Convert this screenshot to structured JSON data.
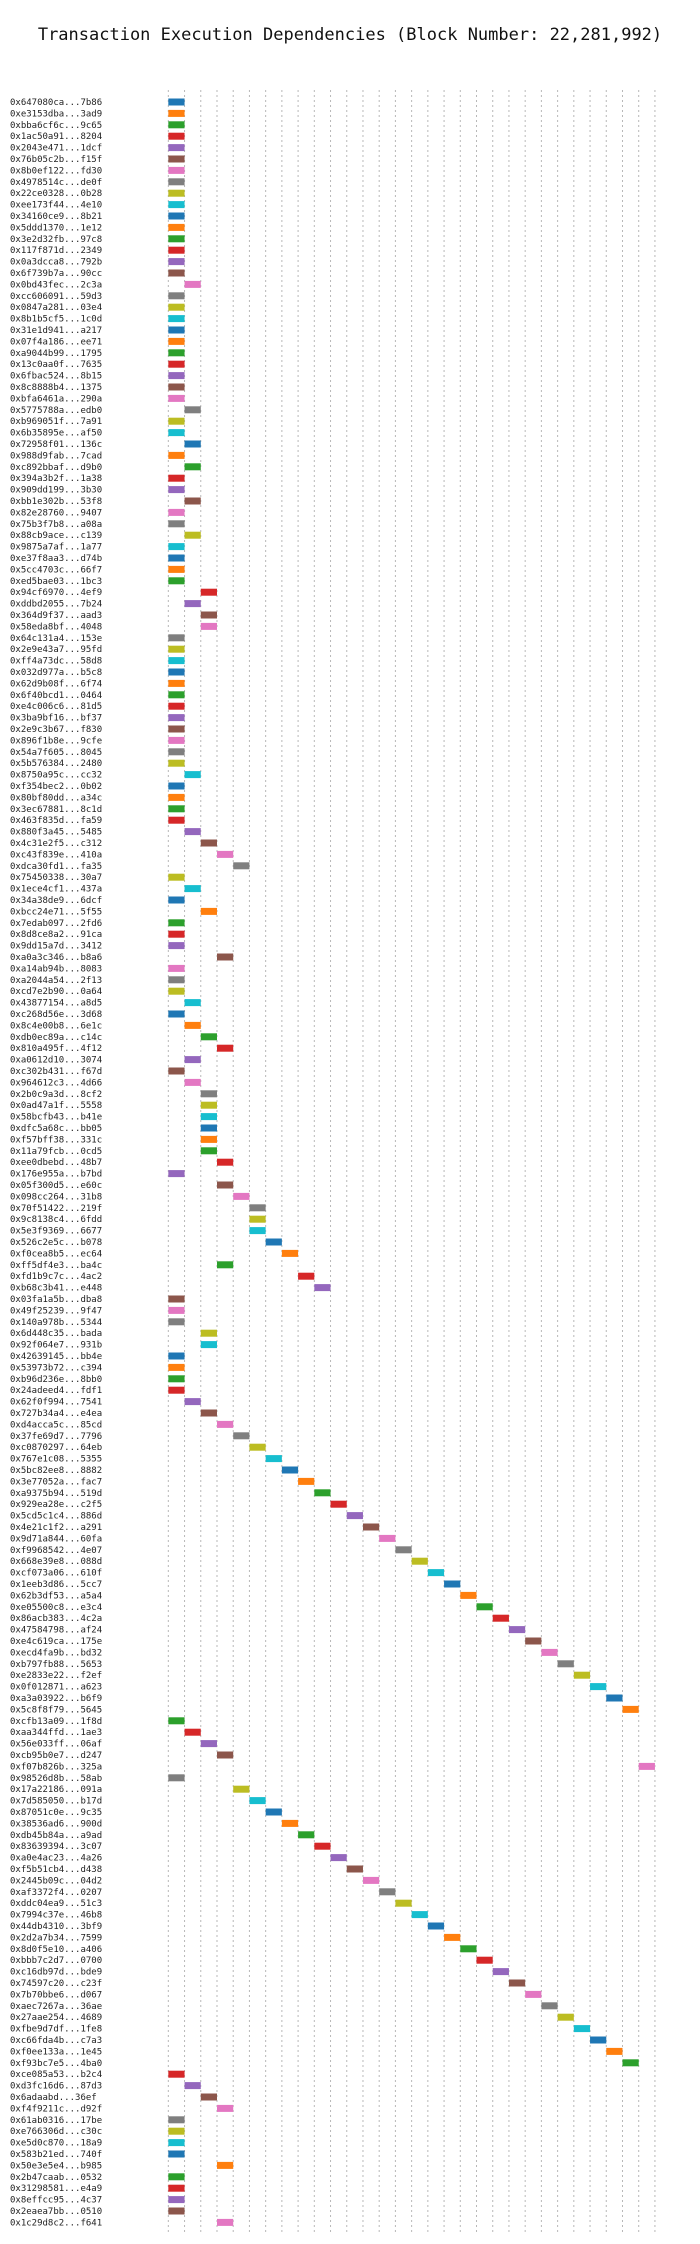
{
  "chart_data": {
    "type": "gantt",
    "title": "Transaction Execution Dependencies (Block Number: 22,281,992)",
    "xlabel": "",
    "ylabel": "",
    "xlim": [
      -1.5,
      31
    ],
    "x_ticks": [
      0,
      5,
      10,
      15,
      20,
      25,
      30
    ],
    "grid": "dotted vertical lines at every integer step",
    "bar_duration": 1,
    "palette": [
      "#1f77b4",
      "#ff7f0e",
      "#2ca02c",
      "#d62728",
      "#9467bd",
      "#8c564b",
      "#e377c2",
      "#7f7f7f",
      "#bcbd22",
      "#17becf"
    ],
    "transactions": [
      {
        "label": "0x647080ca...7b86",
        "start": 0
      },
      {
        "label": "0xe3153dba...3ad9",
        "start": 0
      },
      {
        "label": "0xbba6cf6c...9c65",
        "start": 0
      },
      {
        "label": "0x1ac50a91...8204",
        "start": 0
      },
      {
        "label": "0x2043e471...1dcf",
        "start": 0
      },
      {
        "label": "0x76b05c2b...f15f",
        "start": 0
      },
      {
        "label": "0x8b0ef122...fd30",
        "start": 0
      },
      {
        "label": "0x4978514c...de0f",
        "start": 0
      },
      {
        "label": "0x22ce0328...0b28",
        "start": 0
      },
      {
        "label": "0xee173f44...4e10",
        "start": 0
      },
      {
        "label": "0x34160ce9...8b21",
        "start": 0
      },
      {
        "label": "0x5ddd1370...1e12",
        "start": 0
      },
      {
        "label": "0x3e2d32fb...97c8",
        "start": 0
      },
      {
        "label": "0x117f871d...2349",
        "start": 0
      },
      {
        "label": "0x0a3dcca8...792b",
        "start": 0
      },
      {
        "label": "0x6f739b7a...90cc",
        "start": 0
      },
      {
        "label": "0x0bd43fec...2c3a",
        "start": 1
      },
      {
        "label": "0xcc606091...59d3",
        "start": 0
      },
      {
        "label": "0x0847a281...03e4",
        "start": 0
      },
      {
        "label": "0x8b1b5cf5...1c0d",
        "start": 0
      },
      {
        "label": "0x31e1d941...a217",
        "start": 0
      },
      {
        "label": "0x07f4a186...ee71",
        "start": 0
      },
      {
        "label": "0xa9044b99...1795",
        "start": 0
      },
      {
        "label": "0x13c0aa0f...7635",
        "start": 0
      },
      {
        "label": "0x6fbac524...8b15",
        "start": 0
      },
      {
        "label": "0x8c8888b4...1375",
        "start": 0
      },
      {
        "label": "0xbfa6461a...290a",
        "start": 0
      },
      {
        "label": "0x5775788a...edb0",
        "start": 1
      },
      {
        "label": "0xb969051f...7a91",
        "start": 0
      },
      {
        "label": "0x6b35895e...af50",
        "start": 0
      },
      {
        "label": "0x72958f01...136c",
        "start": 1
      },
      {
        "label": "0x988d9fab...7cad",
        "start": 0
      },
      {
        "label": "0xc892bbaf...d9b0",
        "start": 1
      },
      {
        "label": "0x394a3b2f...1a38",
        "start": 0
      },
      {
        "label": "0x909dd199...3b30",
        "start": 0
      },
      {
        "label": "0xbb1e302b...53f8",
        "start": 1
      },
      {
        "label": "0x82e28760...9407",
        "start": 0
      },
      {
        "label": "0x75b3f7b8...a08a",
        "start": 0
      },
      {
        "label": "0x88cb9ace...c139",
        "start": 1
      },
      {
        "label": "0x9875a7af...1a77",
        "start": 0
      },
      {
        "label": "0xe37f8aa3...d74b",
        "start": 0
      },
      {
        "label": "0x5cc4703c...66f7",
        "start": 0
      },
      {
        "label": "0xed5bae03...1bc3",
        "start": 0
      },
      {
        "label": "0x94cf6970...4ef9",
        "start": 2
      },
      {
        "label": "0xddbd2055...7b24",
        "start": 1
      },
      {
        "label": "0x364d9f37...aad3",
        "start": 2
      },
      {
        "label": "0x58eda8bf...4048",
        "start": 2
      },
      {
        "label": "0x64c131a4...153e",
        "start": 0
      },
      {
        "label": "0x2e9e43a7...95fd",
        "start": 0
      },
      {
        "label": "0xff4a73dc...58d8",
        "start": 0
      },
      {
        "label": "0x032d977a...b5c8",
        "start": 0
      },
      {
        "label": "0x62d9b08f...6f74",
        "start": 0
      },
      {
        "label": "0x6f40bcd1...0464",
        "start": 0
      },
      {
        "label": "0xe4c006c6...81d5",
        "start": 0
      },
      {
        "label": "0x3ba9bf16...bf37",
        "start": 0
      },
      {
        "label": "0x2e9c3b67...f830",
        "start": 0
      },
      {
        "label": "0x896f1b8e...9cfe",
        "start": 0
      },
      {
        "label": "0x54a7f605...8045",
        "start": 0
      },
      {
        "label": "0x5b576384...2480",
        "start": 0
      },
      {
        "label": "0x8750a95c...cc32",
        "start": 1
      },
      {
        "label": "0xf354bec2...0b02",
        "start": 0
      },
      {
        "label": "0x80bf80dd...a34c",
        "start": 0
      },
      {
        "label": "0x3ec67881...8c1d",
        "start": 0
      },
      {
        "label": "0x463f835d...fa59",
        "start": 0
      },
      {
        "label": "0x880f3a45...5485",
        "start": 1
      },
      {
        "label": "0x4c31e2f5...c312",
        "start": 2
      },
      {
        "label": "0xc43f839e...410a",
        "start": 3
      },
      {
        "label": "0xdca30fd1...fa35",
        "start": 4
      },
      {
        "label": "0x75450338...30a7",
        "start": 0
      },
      {
        "label": "0x1ece4cf1...437a",
        "start": 1
      },
      {
        "label": "0x34a38de9...6dcf",
        "start": 0
      },
      {
        "label": "0xbcc24e71...5f55",
        "start": 2
      },
      {
        "label": "0x7edab097...2fd6",
        "start": 0
      },
      {
        "label": "0x8d8ce8a2...91ca",
        "start": 0
      },
      {
        "label": "0x9dd15a7d...3412",
        "start": 0
      },
      {
        "label": "0xa0a3c346...b8a6",
        "start": 3
      },
      {
        "label": "0xa14ab94b...8083",
        "start": 0
      },
      {
        "label": "0xa2044a54...2f13",
        "start": 0
      },
      {
        "label": "0xcd7e2b90...0a64",
        "start": 0
      },
      {
        "label": "0x43877154...a8d5",
        "start": 1
      },
      {
        "label": "0xc268d56e...3d68",
        "start": 0
      },
      {
        "label": "0x8c4e00b8...6e1c",
        "start": 1
      },
      {
        "label": "0xdb0ec89a...c14c",
        "start": 2
      },
      {
        "label": "0x810a495f...4f12",
        "start": 3
      },
      {
        "label": "0xa0612d10...3074",
        "start": 1
      },
      {
        "label": "0xc302b431...f67d",
        "start": 0
      },
      {
        "label": "0x964612c3...4d66",
        "start": 1
      },
      {
        "label": "0x2b0c9a3d...8cf2",
        "start": 2
      },
      {
        "label": "0x0ad47a1f...5558",
        "start": 2
      },
      {
        "label": "0x58bcfb43...b41e",
        "start": 2
      },
      {
        "label": "0xdfc5a68c...bb05",
        "start": 2
      },
      {
        "label": "0xf57bff38...331c",
        "start": 2
      },
      {
        "label": "0x11a79fcb...0cd5",
        "start": 2
      },
      {
        "label": "0xee0dbebd...48b7",
        "start": 3
      },
      {
        "label": "0x176e955a...b7bd",
        "start": 0
      },
      {
        "label": "0x05f300d5...e60c",
        "start": 3
      },
      {
        "label": "0x098cc264...31b8",
        "start": 4
      },
      {
        "label": "0x70f51422...219f",
        "start": 5
      },
      {
        "label": "0x9c8138c4...6fdd",
        "start": 5
      },
      {
        "label": "0x5e3f9369...6677",
        "start": 5
      },
      {
        "label": "0x526c2e5c...b078",
        "start": 6
      },
      {
        "label": "0xf0cea8b5...ec64",
        "start": 7
      },
      {
        "label": "0xff5df4e3...ba4c",
        "start": 3
      },
      {
        "label": "0xfd1b9c7c...4ac2",
        "start": 8
      },
      {
        "label": "0xb68c3b41...e448",
        "start": 9
      },
      {
        "label": "0x03fa1a5b...dba8",
        "start": 0
      },
      {
        "label": "0x49f25239...9f47",
        "start": 0
      },
      {
        "label": "0x140a978b...5344",
        "start": 0
      },
      {
        "label": "0x6d448c35...bada",
        "start": 2
      },
      {
        "label": "0x92f064e7...931b",
        "start": 2
      },
      {
        "label": "0x42639145...bb4e",
        "start": 0
      },
      {
        "label": "0x53973b72...c394",
        "start": 0
      },
      {
        "label": "0xb96d236e...8bb0",
        "start": 0
      },
      {
        "label": "0x24adeed4...fdf1",
        "start": 0
      },
      {
        "label": "0x62f0f994...7541",
        "start": 1
      },
      {
        "label": "0x727b34a4...e4ea",
        "start": 2
      },
      {
        "label": "0xd4acca5c...85cd",
        "start": 3
      },
      {
        "label": "0x37fe69d7...7796",
        "start": 4
      },
      {
        "label": "0xc0870297...64eb",
        "start": 5
      },
      {
        "label": "0x767e1c08...5355",
        "start": 6
      },
      {
        "label": "0x5bc82ee8...8882",
        "start": 7
      },
      {
        "label": "0x3e77052a...fac7",
        "start": 8
      },
      {
        "label": "0xa9375b94...519d",
        "start": 9
      },
      {
        "label": "0x929ea28e...c2f5",
        "start": 10
      },
      {
        "label": "0x5cd5c1c4...886d",
        "start": 11
      },
      {
        "label": "0x4e21c1f2...a291",
        "start": 12
      },
      {
        "label": "0x9d71a844...60fa",
        "start": 13
      },
      {
        "label": "0xf9968542...4e07",
        "start": 14
      },
      {
        "label": "0x668e39e8...088d",
        "start": 15
      },
      {
        "label": "0xcf073a06...610f",
        "start": 16
      },
      {
        "label": "0x1eeb3d86...5cc7",
        "start": 17
      },
      {
        "label": "0x62b3df53...a5a4",
        "start": 18
      },
      {
        "label": "0xe05500c8...e3c4",
        "start": 19
      },
      {
        "label": "0x86acb383...4c2a",
        "start": 20
      },
      {
        "label": "0x47584798...af24",
        "start": 21
      },
      {
        "label": "0xe4c619ca...175e",
        "start": 22
      },
      {
        "label": "0xecd4fa9b...bd32",
        "start": 23
      },
      {
        "label": "0xb797fb88...5653",
        "start": 24
      },
      {
        "label": "0xe2833e22...f2ef",
        "start": 25
      },
      {
        "label": "0x0f012871...a623",
        "start": 26
      },
      {
        "label": "0xa3a03922...b6f9",
        "start": 27
      },
      {
        "label": "0x5c8f8f79...5645",
        "start": 28
      },
      {
        "label": "0xcfb13a09...1f8d",
        "start": 0
      },
      {
        "label": "0xaa344ffd...1ae3",
        "start": 1
      },
      {
        "label": "0x56e033ff...06af",
        "start": 2
      },
      {
        "label": "0xcb95b0e7...d247",
        "start": 3
      },
      {
        "label": "0xf07b826b...325a",
        "start": 29
      },
      {
        "label": "0x98526d8b...58ab",
        "start": 0
      },
      {
        "label": "0x17a22186...091a",
        "start": 4
      },
      {
        "label": "0x7d585050...b17d",
        "start": 5
      },
      {
        "label": "0x87051c0e...9c35",
        "start": 6
      },
      {
        "label": "0x38536ad6...900d",
        "start": 7
      },
      {
        "label": "0xdb45b84a...a9ad",
        "start": 8
      },
      {
        "label": "0x83639394...3c07",
        "start": 9
      },
      {
        "label": "0xa0e4ac23...4a26",
        "start": 10
      },
      {
        "label": "0xf5b51cb4...d438",
        "start": 11
      },
      {
        "label": "0x2445b09c...04d2",
        "start": 12
      },
      {
        "label": "0xaf3372f4...0207",
        "start": 13
      },
      {
        "label": "0xddc04ea9...51c3",
        "start": 14
      },
      {
        "label": "0x7994c37e...46b8",
        "start": 15
      },
      {
        "label": "0x44db4310...3bf9",
        "start": 16
      },
      {
        "label": "0x2d2a7b34...7599",
        "start": 17
      },
      {
        "label": "0x8d0f5e10...a406",
        "start": 18
      },
      {
        "label": "0xbbb7c2d7...0700",
        "start": 19
      },
      {
        "label": "0xc16db97d...bde9",
        "start": 20
      },
      {
        "label": "0x74597c20...c23f",
        "start": 21
      },
      {
        "label": "0x7b70bbe6...d067",
        "start": 22
      },
      {
        "label": "0xaec7267a...36ae",
        "start": 23
      },
      {
        "label": "0x27aae254...4689",
        "start": 24
      },
      {
        "label": "0xfbe9d7df...1fe8",
        "start": 25
      },
      {
        "label": "0xc66fda4b...c7a3",
        "start": 26
      },
      {
        "label": "0xf0ee133a...1e45",
        "start": 27
      },
      {
        "label": "0xf93bc7e5...4ba0",
        "start": 28
      },
      {
        "label": "0xce085a53...b2c4",
        "start": 0
      },
      {
        "label": "0xd3fc16d6...87d3",
        "start": 1
      },
      {
        "label": "0x6adaabd...36ef",
        "start": 2
      },
      {
        "label": "0xf4f9211c...d92f",
        "start": 3
      },
      {
        "label": "0x61ab0316...17be",
        "start": 0
      },
      {
        "label": "0xe766306d...c30c",
        "start": 0
      },
      {
        "label": "0xe5d0c870...18a9",
        "start": 0
      },
      {
        "label": "0x583b21ed...740f",
        "start": 0
      },
      {
        "label": "0x50e3e5e4...b985",
        "start": 3
      },
      {
        "label": "0x2b47caab...0532",
        "start": 0
      },
      {
        "label": "0x31298581...e4a9",
        "start": 0
      },
      {
        "label": "0x8effcc95...4c37",
        "start": 0
      },
      {
        "label": "0x2eaea7bb...0510",
        "start": 0
      },
      {
        "label": "0x1c29d8c2...f641",
        "start": 3
      }
    ]
  }
}
